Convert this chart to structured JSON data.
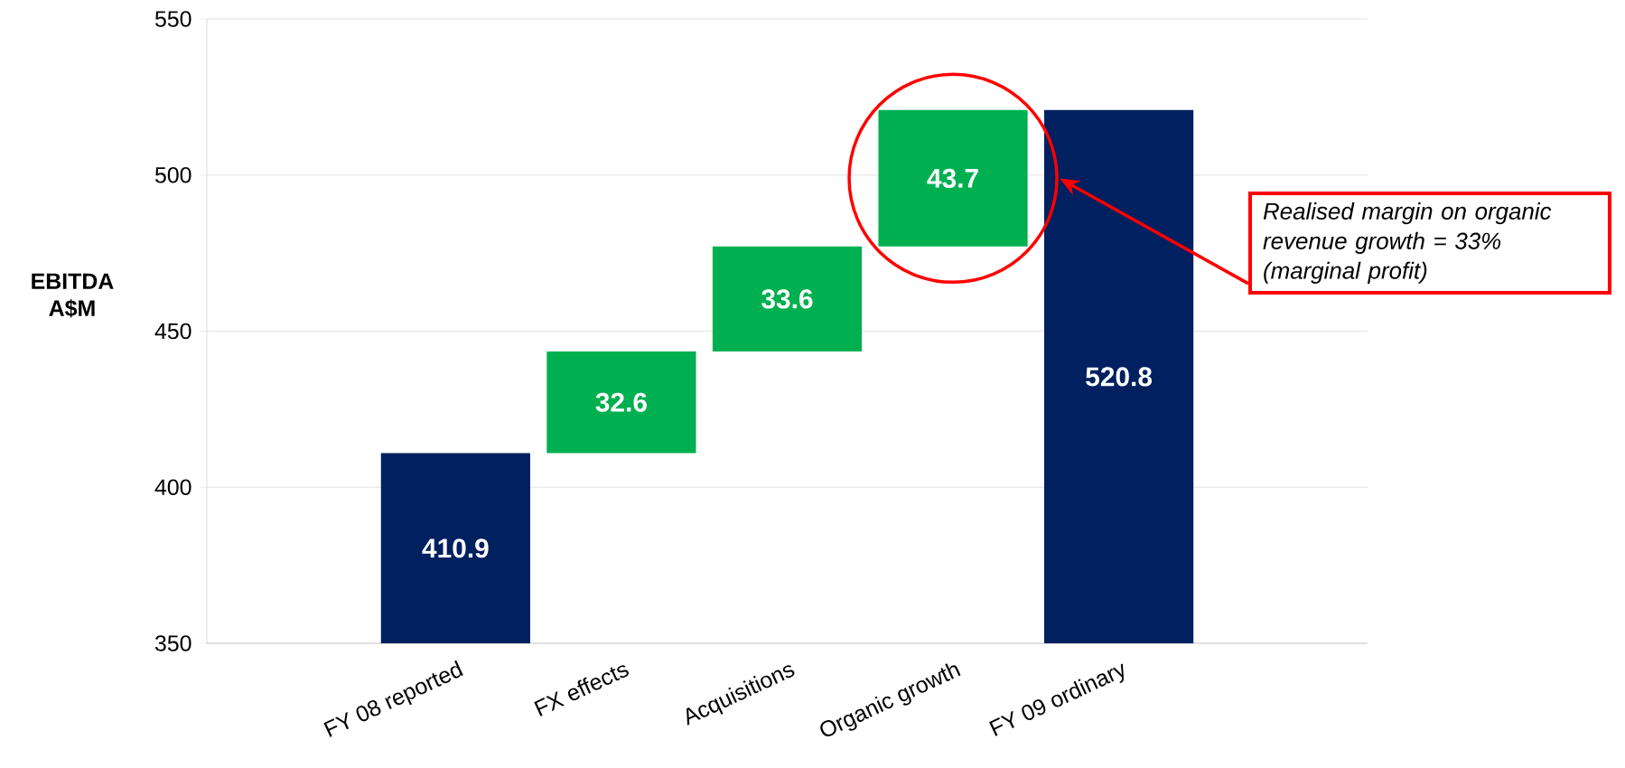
{
  "chart_data": {
    "type": "bar",
    "ylabel": "EBITDA A$M",
    "categories": [
      null,
      "FY 08 reported",
      "FX effects",
      "Acquisitions",
      "Organic growth",
      "FY 09 ordinary",
      null
    ],
    "values": [
      null,
      410.9,
      32.6,
      33.6,
      43.7,
      520.8,
      null
    ],
    "base": [
      null,
      null,
      410.9,
      443.5,
      477.1,
      null,
      null
    ],
    "colors": [
      "#002060",
      "#002060",
      "#00b050",
      "#00b050",
      "#00b050",
      "#002060",
      "#002060"
    ],
    "ylim": [
      350,
      550
    ],
    "yticks": [
      350,
      400,
      450,
      500,
      550
    ],
    "grid": "y",
    "data_labels": true,
    "annotations": [
      "Realised margin on organic revenue growth = 33% (marginal profit)"
    ]
  }
}
